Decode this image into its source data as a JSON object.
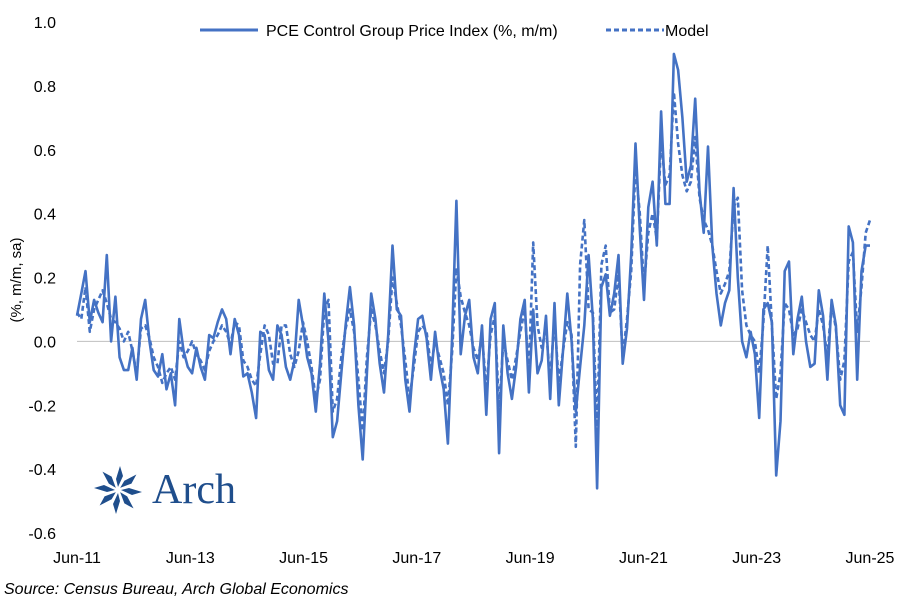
{
  "source": "Source: Census Bureau, Arch Global Economics",
  "logo": {
    "name": "Arch",
    "color": "#1f4e8c"
  },
  "colors": {
    "series": "#4472c4",
    "zero_line": "#bfbfbf"
  },
  "chart_data": {
    "type": "line",
    "title": "",
    "xlabel": "",
    "ylabel": "(%, m/m, sa)",
    "ylim": [
      -0.6,
      1.0
    ],
    "yticks": [
      1.0,
      0.8,
      0.6,
      0.4,
      0.2,
      0.0,
      -0.2,
      -0.4,
      -0.6
    ],
    "ytick_labels": [
      "1.0",
      "0.8",
      "0.6",
      "0.4",
      "0.2",
      "0.0",
      "-0.2",
      "-0.4",
      "-0.6"
    ],
    "x_start": "2011-06",
    "x_end": "2025-06",
    "xticks": [
      "Jun-11",
      "Jun-13",
      "Jun-15",
      "Jun-17",
      "Jun-19",
      "Jun-21",
      "Jun-23",
      "Jun-25"
    ],
    "legend_position": "top",
    "grid": false,
    "series": [
      {
        "name": "PCE Control Group Price Index (%, m/m)",
        "style": "solid",
        "values": [
          0.08,
          0.15,
          0.22,
          0.06,
          0.13,
          0.09,
          0.06,
          0.27,
          0.0,
          0.14,
          -0.05,
          -0.09,
          -0.09,
          -0.02,
          -0.12,
          0.07,
          0.13,
          0.0,
          -0.09,
          -0.11,
          -0.04,
          -0.15,
          -0.1,
          -0.2,
          0.07,
          -0.03,
          -0.08,
          -0.1,
          -0.02,
          -0.08,
          -0.12,
          0.02,
          0.01,
          0.06,
          0.1,
          0.07,
          -0.04,
          0.07,
          0.02,
          -0.11,
          -0.1,
          -0.16,
          -0.24,
          0.03,
          0.02,
          -0.09,
          -0.12,
          0.05,
          0.02,
          -0.08,
          -0.12,
          -0.06,
          0.13,
          0.05,
          -0.05,
          -0.1,
          -0.22,
          -0.07,
          0.15,
          0.0,
          -0.3,
          -0.25,
          -0.1,
          0.05,
          0.17,
          0.05,
          -0.2,
          -0.37,
          -0.1,
          0.15,
          0.07,
          -0.07,
          -0.16,
          0.02,
          0.3,
          0.1,
          0.08,
          -0.12,
          -0.22,
          -0.05,
          0.07,
          0.08,
          0.01,
          -0.12,
          0.03,
          -0.08,
          -0.15,
          -0.32,
          0.02,
          0.44,
          -0.04,
          0.08,
          0.13,
          -0.05,
          -0.1,
          0.05,
          -0.23,
          0.07,
          0.12,
          -0.35,
          0.05,
          -0.1,
          -0.18,
          -0.08,
          0.07,
          0.13,
          -0.16,
          0.1,
          -0.1,
          -0.06,
          0.08,
          -0.18,
          0.12,
          -0.2,
          -0.03,
          0.15,
          0.0,
          -0.22,
          -0.08,
          0.05,
          0.27,
          0.07,
          -0.46,
          0.17,
          0.21,
          0.08,
          0.15,
          0.27,
          -0.07,
          0.04,
          0.27,
          0.62,
          0.35,
          0.13,
          0.42,
          0.5,
          0.3,
          0.72,
          0.43,
          0.43,
          0.9,
          0.85,
          0.7,
          0.5,
          0.55,
          0.76,
          0.47,
          0.34,
          0.61,
          0.3,
          0.15,
          0.05,
          0.12,
          0.16,
          0.48,
          0.2,
          0.0,
          -0.05,
          0.03,
          -0.04,
          -0.24,
          0.1,
          0.12,
          0.06,
          -0.42,
          -0.25,
          0.22,
          0.25,
          -0.04,
          0.07,
          0.14,
          0.0,
          -0.08,
          -0.07,
          0.16,
          0.08,
          -0.12,
          0.13,
          0.05,
          -0.2,
          -0.23,
          0.36,
          0.31,
          -0.12,
          0.22,
          0.3,
          0.3
        ],
        "legend_label": "PCE Control Group Price Index (%, m/m)"
      },
      {
        "name": "Model",
        "style": "dashed",
        "values": [
          0.09,
          0.07,
          0.17,
          0.03,
          0.1,
          0.13,
          0.16,
          0.12,
          0.07,
          0.06,
          0.04,
          0.0,
          0.03,
          -0.03,
          -0.1,
          0.04,
          0.05,
          0.01,
          -0.05,
          -0.08,
          -0.13,
          -0.1,
          -0.08,
          -0.12,
          0.0,
          -0.05,
          -0.03,
          0.0,
          -0.04,
          -0.06,
          -0.09,
          -0.03,
          0.0,
          0.02,
          0.05,
          0.03,
          -0.01,
          0.06,
          0.05,
          -0.06,
          -0.08,
          -0.12,
          -0.14,
          -0.04,
          0.05,
          0.02,
          -0.07,
          -0.07,
          0.05,
          0.05,
          -0.04,
          -0.08,
          -0.03,
          0.06,
          0.0,
          -0.08,
          -0.18,
          -0.12,
          0.1,
          0.13,
          -0.22,
          -0.18,
          -0.05,
          0.04,
          0.1,
          0.03,
          -0.12,
          -0.28,
          -0.05,
          0.1,
          0.05,
          -0.03,
          -0.1,
          0.0,
          0.2,
          0.12,
          0.05,
          -0.06,
          -0.18,
          -0.08,
          0.03,
          0.05,
          0.03,
          -0.08,
          0.0,
          -0.05,
          -0.1,
          -0.2,
          -0.03,
          0.23,
          0.14,
          0.09,
          0.05,
          -0.02,
          -0.06,
          0.02,
          -0.15,
          0.02,
          0.08,
          -0.22,
          0.0,
          -0.06,
          -0.12,
          -0.05,
          0.03,
          0.1,
          -0.1,
          0.31,
          0.05,
          -0.02,
          0.04,
          -0.12,
          0.07,
          -0.13,
          -0.03,
          0.06,
          0.02,
          -0.33,
          0.24,
          0.38,
          0.1,
          0.09,
          -0.28,
          0.24,
          0.3,
          0.09,
          0.1,
          0.21,
          -0.05,
          0.07,
          0.22,
          0.55,
          0.4,
          0.17,
          0.34,
          0.4,
          0.32,
          0.63,
          0.49,
          0.52,
          0.78,
          0.62,
          0.52,
          0.47,
          0.5,
          0.64,
          0.45,
          0.38,
          0.35,
          0.3,
          0.22,
          0.15,
          0.18,
          0.22,
          0.42,
          0.45,
          0.16,
          0.05,
          0.02,
          0.0,
          -0.1,
          0.06,
          0.3,
          0.05,
          -0.18,
          -0.1,
          0.12,
          0.1,
          0.02,
          0.04,
          0.1,
          0.06,
          0.02,
          0.0,
          0.1,
          0.05,
          -0.05,
          0.12,
          0.04,
          -0.12,
          -0.06,
          0.25,
          0.28,
          0.03,
          0.17,
          0.34,
          0.38
        ]
      }
    ]
  }
}
